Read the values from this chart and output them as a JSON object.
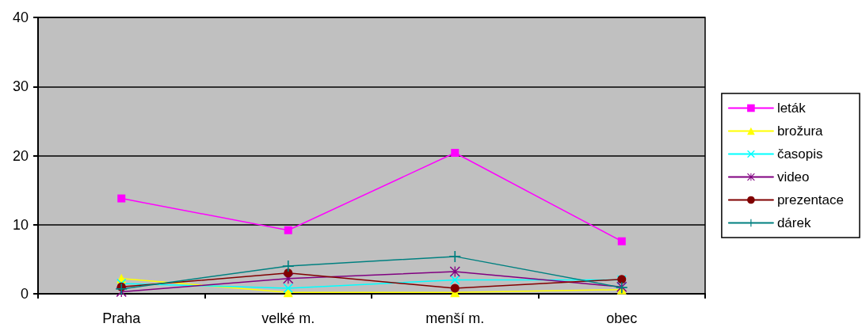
{
  "chart_data": {
    "type": "line",
    "categories": [
      "Praha",
      "velké m.",
      "menší m.",
      "obec"
    ],
    "series": [
      {
        "name": "leták",
        "color": "#ff00ff",
        "marker": "square",
        "values": [
          13.8,
          9.2,
          20.4,
          7.6
        ]
      },
      {
        "name": "brožura",
        "color": "#ffff00",
        "marker": "triangle",
        "values": [
          2.2,
          0.2,
          0.2,
          0.6
        ]
      },
      {
        "name": "časopis",
        "color": "#00ffff",
        "marker": "cross",
        "values": [
          1.5,
          0.8,
          2.0,
          2.0
        ]
      },
      {
        "name": "video",
        "color": "#800080",
        "marker": "star",
        "values": [
          0.3,
          2.2,
          3.2,
          1.0
        ]
      },
      {
        "name": "prezentace",
        "color": "#800000",
        "marker": "circle",
        "values": [
          1.0,
          3.0,
          0.8,
          2.1
        ]
      },
      {
        "name": "dárek",
        "color": "#008080",
        "marker": "plus",
        "values": [
          0.7,
          4.0,
          5.4,
          0.9
        ]
      }
    ],
    "ylim": [
      0,
      40
    ],
    "yticks": [
      0,
      10,
      20,
      30,
      40
    ],
    "grid": "y",
    "legend": "right",
    "line_style": "solid"
  }
}
